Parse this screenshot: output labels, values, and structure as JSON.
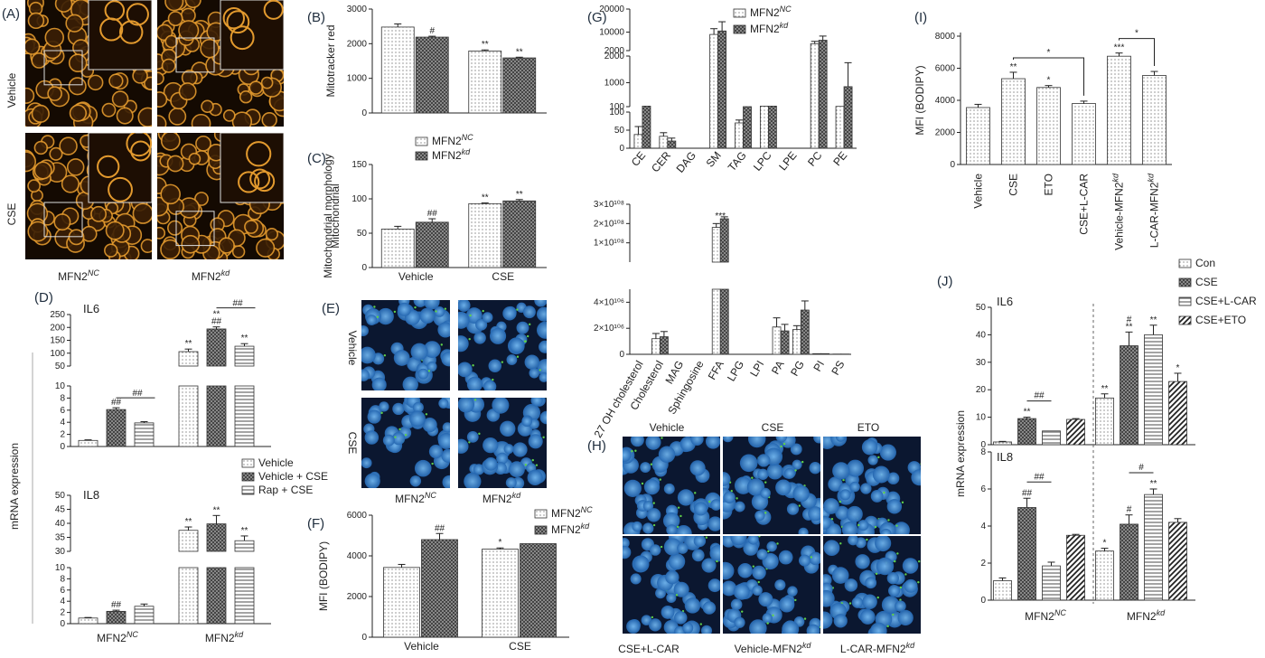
{
  "panels": {
    "A": {
      "label": "(A)",
      "rows": [
        "Vehicle",
        "CSE"
      ],
      "cols": [
        "MFN2^NC",
        "MFN2^kd"
      ]
    },
    "D": {
      "label": "(D)"
    },
    "E": {
      "label": "(E)",
      "rows": [
        "Vehicle",
        "CSE"
      ],
      "cols": [
        "MFN2^NC",
        "MFN2^kd"
      ]
    },
    "H": {
      "label": "(H)",
      "top_cols": [
        "Vehicle",
        "CSE",
        "ETO"
      ],
      "bottom_cols": [
        "CSE+L-CAR",
        "Vehicle-MFN2^kd",
        "L-CAR-MFN2^kd"
      ]
    }
  },
  "colors": {
    "micro_bg": "#140a02",
    "micro_cell": "#e39a2e",
    "blue_bg": "#0b1730",
    "blue_nuc": "#3a8fd8",
    "green_spot": "#5fd14b"
  },
  "chart_data": [
    {
      "id": "B",
      "panel": "(B)",
      "type": "bar",
      "ylabel": "Mitotracker red",
      "ylim": [
        0,
        3000
      ],
      "yticks": [
        0,
        1000,
        2000,
        3000
      ],
      "groups": [
        "",
        ""
      ],
      "series": [
        {
          "name": "MFN2^NC",
          "values": [
            2480,
            1790
          ],
          "err": [
            90,
            30
          ],
          "marks": [
            "",
            "**"
          ]
        },
        {
          "name": "MFN2^kd",
          "values": [
            2190,
            1590
          ],
          "err": [
            25,
            20
          ],
          "marks": [
            "#",
            "**"
          ]
        }
      ]
    },
    {
      "id": "C",
      "panel": "(C)",
      "type": "bar",
      "ylabel": "Mitochondrial morphology",
      "ylim": [
        0,
        150
      ],
      "yticks": [
        0,
        50,
        100,
        150
      ],
      "groups": [
        "Vehicle",
        "CSE"
      ],
      "legend": [
        "MFN2^NC",
        "MFN2^kd"
      ],
      "series": [
        {
          "name": "MFN2^NC",
          "values": [
            56,
            93
          ],
          "err": [
            4,
            1
          ],
          "marks": [
            "",
            "**"
          ]
        },
        {
          "name": "MFN2^kd",
          "values": [
            66,
            97
          ],
          "err": [
            5,
            2
          ],
          "marks": [
            "##",
            "**"
          ]
        }
      ]
    },
    {
      "id": "D",
      "panel": "(D)",
      "type": "bar",
      "ylabel": "mRNA expression",
      "groups": [
        "MFN2^NC",
        "MFN2^kd"
      ],
      "legend": [
        "Vehicle",
        "Vehicle + CSE",
        "Rap + CSE"
      ],
      "subplots": [
        {
          "title": "IL6",
          "upper": {
            "ylim": [
              50,
              250
            ],
            "yticks": [
              50,
              100,
              150,
              200,
              250
            ]
          },
          "lower": {
            "ylim": [
              0,
              10
            ],
            "yticks": [
              0,
              2,
              4,
              6,
              8,
              10
            ]
          },
          "series": [
            {
              "name": "Vehicle",
              "values": [
                1.0,
                106
              ],
              "err": [
                0.1,
                10
              ],
              "marks": [
                "",
                "**"
              ]
            },
            {
              "name": "Vehicle + CSE",
              "values": [
                6.1,
                194
              ],
              "err": [
                0.3,
                8
              ],
              "marks": [
                "##",
                "**\n##"
              ]
            },
            {
              "name": "Rap + CSE",
              "values": [
                3.9,
                127
              ],
              "err": [
                0.2,
                10
              ],
              "marks": [
                "",
                "**"
              ]
            }
          ],
          "brackets": [
            {
              "group": 0,
              "from": 1,
              "to": 2,
              "text": "##"
            },
            {
              "group": 1,
              "from": 1,
              "to": 2,
              "text": "##"
            }
          ]
        },
        {
          "title": "IL8",
          "upper": {
            "ylim": [
              30,
              50
            ],
            "yticks": [
              30,
              35,
              40,
              45,
              50
            ]
          },
          "lower": {
            "ylim": [
              0,
              10
            ],
            "yticks": [
              0,
              2,
              4,
              6,
              8,
              10
            ]
          },
          "series": [
            {
              "name": "Vehicle",
              "values": [
                1.0,
                37.5
              ],
              "err": [
                0.1,
                1.2
              ],
              "marks": [
                "",
                "**"
              ]
            },
            {
              "name": "Vehicle + CSE",
              "values": [
                2.2,
                39.8
              ],
              "err": [
                0.2,
                3.0
              ],
              "marks": [
                "##",
                "**"
              ]
            },
            {
              "name": "Rap + CSE",
              "values": [
                3.1,
                33.8
              ],
              "err": [
                0.4,
                1.7
              ],
              "marks": [
                "",
                "**"
              ]
            }
          ]
        }
      ]
    },
    {
      "id": "F",
      "panel": "(F)",
      "type": "bar",
      "ylabel": "MFI (BODIPY)",
      "ylim": [
        0,
        6000
      ],
      "yticks": [
        0,
        2000,
        4000,
        6000
      ],
      "groups": [
        "Vehicle",
        "CSE"
      ],
      "legend": [
        "MFN2^NC",
        "MFN2^kd"
      ],
      "series": [
        {
          "name": "MFN2^NC",
          "values": [
            3430,
            4330
          ],
          "err": [
            150,
            60
          ],
          "marks": [
            "",
            "*"
          ]
        },
        {
          "name": "MFN2^kd",
          "values": [
            4800,
            4600
          ],
          "err": [
            300,
            0
          ],
          "marks": [
            "##",
            ""
          ]
        }
      ]
    },
    {
      "id": "G1",
      "panel": "(G)",
      "type": "bar",
      "categories": [
        "CE",
        "CER",
        "DAG",
        "SM",
        "TAG",
        "LPC",
        "LPE",
        "PC",
        "PE"
      ],
      "legend": [
        "MFN2^NC",
        "MFN2^kd"
      ],
      "segments": [
        {
          "ylim": [
            0,
            100
          ],
          "yticks": [
            0,
            50,
            100
          ]
        },
        {
          "ylim": [
            100,
            2000
          ],
          "yticks": [
            100,
            1000,
            2000
          ]
        },
        {
          "ylim": [
            2000,
            20000
          ],
          "yticks": [
            2000,
            10000,
            20000
          ]
        }
      ],
      "series": [
        {
          "name": "MFN2^NC",
          "values": [
            38,
            33,
            0,
            9000,
            70,
            120,
            0,
            5000,
            110
          ],
          "err": [
            22,
            10,
            0,
            2500,
            8,
            10,
            0,
            1000,
            8
          ]
        },
        {
          "name": "MFN2^kd",
          "values": [
            120,
            20,
            0,
            10500,
            100,
            120,
            0,
            6500,
            850
          ],
          "err": [
            10,
            8,
            0,
            4000,
            8,
            15,
            0,
            1800,
            900
          ]
        }
      ]
    },
    {
      "id": "G2",
      "panel": "",
      "type": "bar",
      "categories": [
        "27 OH cholesterol",
        "Cholesterol",
        "MAG",
        "Sphingosine",
        "FFA",
        "LPG",
        "LPI",
        "PA",
        "PG",
        "PI",
        "PS"
      ],
      "segments": [
        {
          "ylim": [
            0,
            5
          ],
          "yticks": [
            0,
            2,
            4
          ],
          "ytick_labels": [
            "0",
            "2×10¹⁰⁶",
            "4×10¹⁰⁶"
          ]
        },
        {
          "ylim": [
            0,
            3
          ],
          "yticks": [
            1,
            2,
            3
          ],
          "ytick_labels": [
            "1×10¹⁰⁸",
            "2×10¹⁰⁸",
            "3×10¹⁰⁸"
          ]
        }
      ],
      "series": [
        {
          "name": "MFN2^NC",
          "values": [
            0,
            1.2,
            0,
            0,
            1.8,
            0,
            0,
            2.1,
            1.9,
            0.05,
            0.02
          ],
          "err": [
            0,
            0.4,
            0,
            0,
            0.2,
            0,
            0,
            0.7,
            0.3,
            0,
            0
          ],
          "scale": [
            "e6",
            "e6",
            "e6",
            "e6",
            "e8",
            "e6",
            "e6",
            "e6",
            "e6",
            "e6",
            "e6"
          ]
        },
        {
          "name": "MFN2^kd",
          "values": [
            0,
            1.35,
            0,
            0,
            2.25,
            0,
            0,
            1.8,
            3.4,
            0.05,
            0.02
          ],
          "err": [
            0,
            0.4,
            0,
            0,
            0.1,
            0,
            0,
            0.5,
            0.7,
            0,
            0
          ],
          "scale": [
            "e6",
            "e6",
            "e6",
            "e6",
            "e8",
            "e6",
            "e6",
            "e6",
            "e6",
            "e6",
            "e6"
          ]
        }
      ],
      "annotations": [
        {
          "category": "FFA",
          "text": "***"
        }
      ]
    },
    {
      "id": "I",
      "panel": "(I)",
      "type": "bar",
      "ylabel": "MFI (BODIPY)",
      "ylim": [
        0,
        8000
      ],
      "yticks": [
        0,
        2000,
        4000,
        6000,
        8000
      ],
      "categories": [
        "Vehicle",
        "CSE",
        "ETO",
        "CSE+L-CAR",
        "Vehicle-MFN2^kd",
        "L-CAR-MFN2^kd"
      ],
      "values": [
        3550,
        5350,
        4800,
        3800,
        6750,
        5550
      ],
      "err": [
        200,
        400,
        120,
        150,
        200,
        250
      ],
      "marks": [
        "",
        "**",
        "*",
        "",
        "***",
        ""
      ],
      "brackets": [
        {
          "from": 1,
          "to": 3,
          "text": "*"
        },
        {
          "from": 4,
          "to": 5,
          "text": "*"
        }
      ]
    },
    {
      "id": "J",
      "panel": "(J)",
      "type": "bar",
      "ylabel": "mRNA expression",
      "groups": [
        "MFN2^NC",
        "MFN2^kd"
      ],
      "legend": [
        "Con",
        "CSE",
        "CSE+L-CAR",
        "CSE+ETO"
      ],
      "subplots": [
        {
          "title": "IL6",
          "ylim": [
            0,
            50
          ],
          "yticks": [
            0,
            10,
            20,
            30,
            40,
            50
          ],
          "series": [
            {
              "name": "Con",
              "values": [
                1.0,
                17
              ],
              "err": [
                0.2,
                1.5
              ],
              "marks": [
                "",
                "**"
              ]
            },
            {
              "name": "CSE",
              "values": [
                9.5,
                36
              ],
              "err": [
                0.5,
                5
              ],
              "marks": [
                "**",
                "#\n**"
              ]
            },
            {
              "name": "CSE+L-CAR",
              "values": [
                5.0,
                40
              ],
              "err": [
                0,
                3.5
              ],
              "marks": [
                "",
                "**"
              ]
            },
            {
              "name": "CSE+ETO",
              "values": [
                9.2,
                23
              ],
              "err": [
                0.3,
                3
              ],
              "marks": [
                "",
                "*"
              ]
            }
          ],
          "brackets": [
            {
              "group": 0,
              "from": 1,
              "to": 2,
              "text": "##"
            }
          ]
        },
        {
          "title": "IL8",
          "ylim": [
            0,
            8
          ],
          "yticks": [
            0,
            2,
            4,
            6,
            8
          ],
          "series": [
            {
              "name": "Con",
              "values": [
                1.05,
                2.65
              ],
              "err": [
                0.15,
                0.15
              ],
              "marks": [
                "",
                "*"
              ]
            },
            {
              "name": "CSE",
              "values": [
                5.0,
                4.1
              ],
              "err": [
                0.5,
                0.5
              ],
              "marks": [
                "##",
                "#"
              ]
            },
            {
              "name": "CSE+L-CAR",
              "values": [
                1.85,
                5.7
              ],
              "err": [
                0.2,
                0.3
              ],
              "marks": [
                "",
                "**"
              ]
            },
            {
              "name": "CSE+ETO",
              "values": [
                3.5,
                4.2
              ],
              "err": [
                0.05,
                0.2
              ],
              "marks": [
                "",
                ""
              ]
            }
          ],
          "brackets": [
            {
              "group": 0,
              "from": 1,
              "to": 2,
              "text": "##"
            },
            {
              "group": 1,
              "from": 1,
              "to": 2,
              "text": "#"
            }
          ]
        }
      ]
    }
  ]
}
